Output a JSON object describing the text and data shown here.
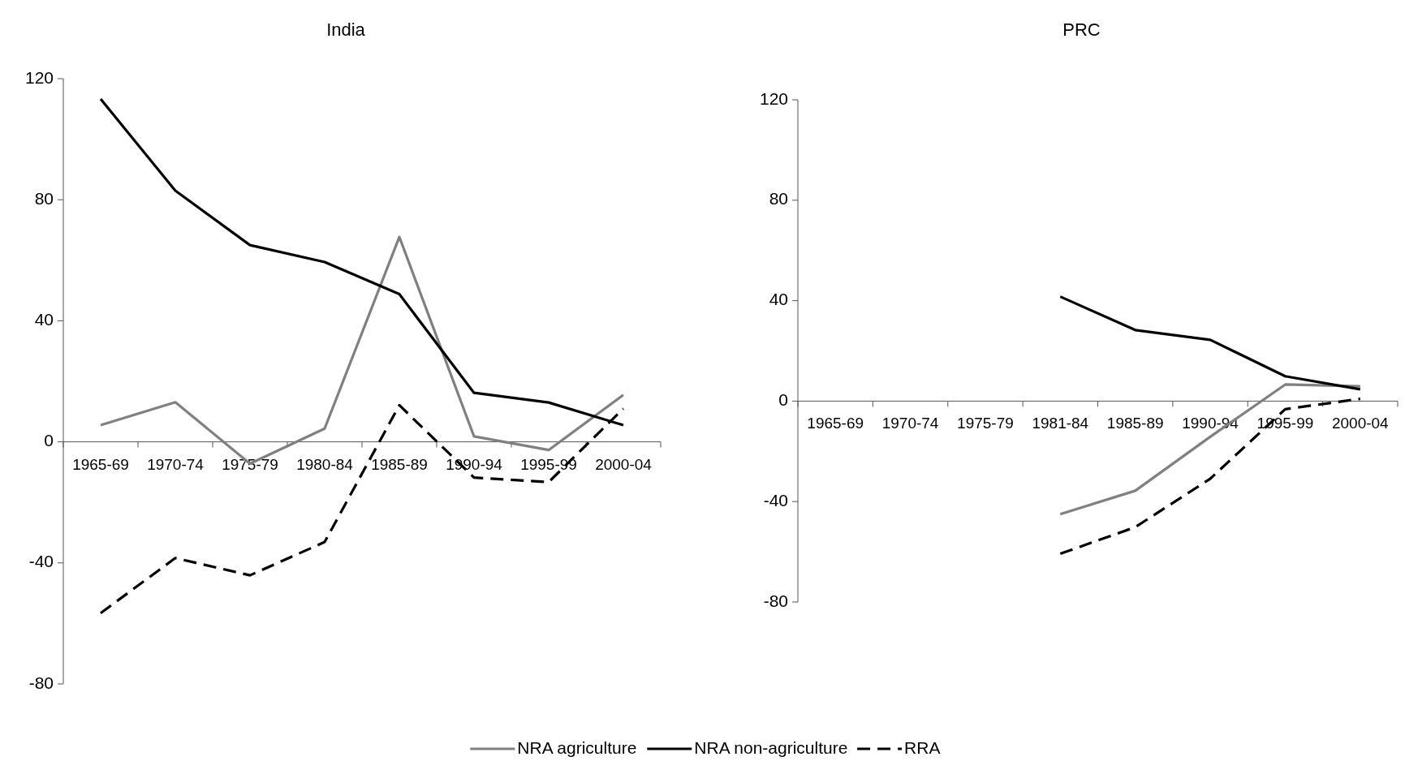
{
  "chart_data": [
    {
      "type": "line",
      "title": "India",
      "categories": [
        "1965-69",
        "1970-74",
        "1975-79",
        "1980-84",
        "1985-89",
        "1990-94",
        "1995-99",
        "2000-04"
      ],
      "ylim": [
        -80,
        120
      ],
      "yticks": [
        -80,
        -40,
        0,
        40,
        80,
        120
      ],
      "legend": "bottom",
      "series": [
        {
          "name": "NRA agriculture",
          "color": "#808080",
          "line_style": "solid",
          "values": [
            5.5,
            13.1,
            -7.2,
            4.4,
            67.7,
            1.8,
            -2.7,
            15.5
          ]
        },
        {
          "name": "NRA non-agriculture",
          "color": "#000000",
          "line_style": "solid",
          "values": [
            113.3,
            83,
            65,
            59.4,
            48.8,
            16.2,
            13,
            5.5
          ]
        },
        {
          "name": "RRA",
          "color": "#000000",
          "line_style": "dashed",
          "values": [
            -56.6,
            -38.4,
            -44.1,
            -33.1,
            12.1,
            -11.8,
            -13.3,
            11
          ]
        }
      ]
    },
    {
      "type": "line",
      "title": "PRC",
      "categories": [
        "1965-69",
        "1970-74",
        "1975-79",
        "1981-84",
        "1985-89",
        "1990-94",
        "1995-99",
        "2000-04"
      ],
      "ylim": [
        -80,
        120
      ],
      "yticks": [
        -80,
        -40,
        0,
        40,
        80,
        120
      ],
      "series": [
        {
          "color": "#808080",
          "line_style": "solid",
          "values": [
            null,
            null,
            null,
            -45,
            -35.7,
            -14.2,
            6.6,
            5.9
          ]
        },
        {
          "color": "#000000",
          "line_style": "solid",
          "values": [
            null,
            null,
            null,
            41.6,
            28.3,
            24.4,
            9.9,
            4.7
          ]
        },
        {
          "color": "#000000",
          "line_style": "dashed",
          "values": [
            null,
            null,
            null,
            -60.8,
            -50.2,
            -30.9,
            -3.2,
            0.9
          ]
        }
      ]
    }
  ]
}
